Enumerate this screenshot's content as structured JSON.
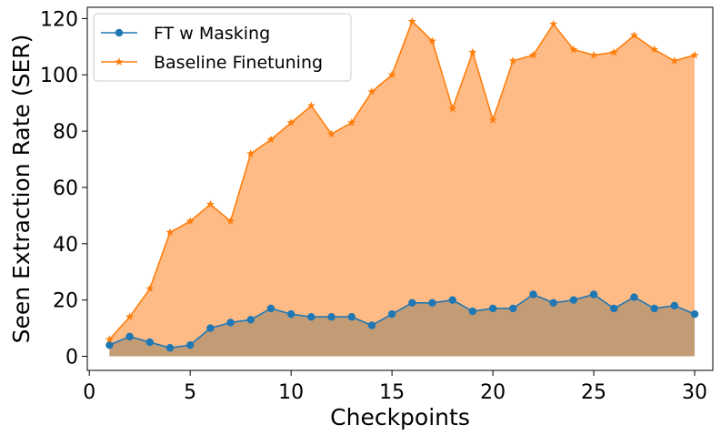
{
  "chart_data": {
    "type": "area",
    "xlabel": "Checkpoints",
    "ylabel": "Seen Extraction Rate (SER)",
    "xlim": [
      -0.1,
      30.9
    ],
    "ylim": [
      -5,
      124
    ],
    "xticks": [
      0,
      5,
      10,
      15,
      20,
      25,
      30
    ],
    "yticks": [
      0,
      20,
      40,
      60,
      80,
      100,
      120
    ],
    "grid": false,
    "legend_position": "top-left",
    "x": [
      1,
      2,
      3,
      4,
      5,
      6,
      7,
      8,
      9,
      10,
      11,
      12,
      13,
      14,
      15,
      16,
      17,
      18,
      19,
      20,
      21,
      22,
      23,
      24,
      25,
      26,
      27,
      28,
      29,
      30
    ],
    "series": [
      {
        "name": "FT w Masking",
        "color": "#1f77b4",
        "fill_color": "#c39c75",
        "marker": "circle",
        "values": [
          4,
          7,
          5,
          3,
          4,
          10,
          12,
          13,
          17,
          15,
          14,
          14,
          14,
          11,
          15,
          19,
          19,
          20,
          16,
          17,
          17,
          22,
          19,
          20,
          22,
          17,
          21,
          17,
          18,
          15
        ]
      },
      {
        "name": "Baseline Finetuning",
        "color": "#ff7f0e",
        "fill_color": "#ffbb85",
        "marker": "star",
        "values": [
          6,
          14,
          24,
          44,
          48,
          54,
          48,
          72,
          77,
          83,
          89,
          79,
          83,
          94,
          100,
          119,
          112,
          88,
          108,
          84,
          105,
          107,
          118,
          109,
          107,
          108,
          114,
          109,
          105,
          107
        ]
      }
    ]
  }
}
